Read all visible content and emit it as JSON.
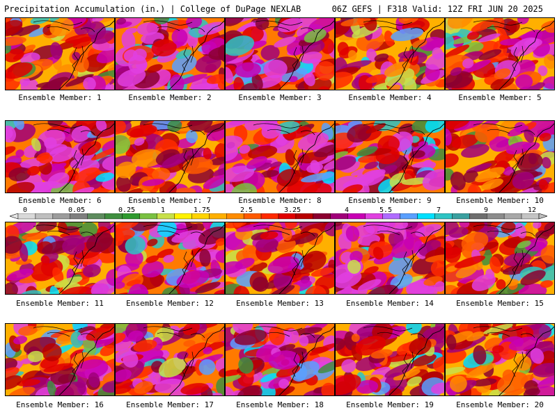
{
  "header": {
    "title_left": "Precipitation Accumulation (in.) | College of DuPage NEXLAB",
    "title_right": "06Z GEFS | F318 Valid: 12Z FRI JUN 20 2025"
  },
  "members": [
    {
      "label": "Ensemble Member: 1",
      "intensity": 0.55
    },
    {
      "label": "Ensemble Member: 2",
      "intensity": 0.92
    },
    {
      "label": "Ensemble Member: 3",
      "intensity": 0.78
    },
    {
      "label": "Ensemble Member: 4",
      "intensity": 0.5
    },
    {
      "label": "Ensemble Member: 5",
      "intensity": 0.62
    },
    {
      "label": "Ensemble Member: 6",
      "intensity": 0.85
    },
    {
      "label": "Ensemble Member: 7",
      "intensity": 0.5
    },
    {
      "label": "Ensemble Member: 8",
      "intensity": 0.82
    },
    {
      "label": "Ensemble Member: 9",
      "intensity": 0.75
    },
    {
      "label": "Ensemble Member: 10",
      "intensity": 0.45
    },
    {
      "label": "Ensemble Member: 11",
      "intensity": 0.58
    },
    {
      "label": "Ensemble Member: 12",
      "intensity": 0.72
    },
    {
      "label": "Ensemble Member: 13",
      "intensity": 0.62
    },
    {
      "label": "Ensemble Member: 14",
      "intensity": 0.8
    },
    {
      "label": "Ensemble Member: 15",
      "intensity": 0.6
    },
    {
      "label": "Ensemble Member: 16",
      "intensity": 0.6
    },
    {
      "label": "Ensemble Member: 17",
      "intensity": 0.78
    },
    {
      "label": "Ensemble Member: 18",
      "intensity": 0.85
    },
    {
      "label": "Ensemble Member: 19",
      "intensity": 0.6
    },
    {
      "label": "Ensemble Member: 20",
      "intensity": 0.55
    }
  ],
  "colorbar": {
    "tick_labels": [
      "0",
      "0.05",
      "0.25",
      "1",
      "1.75",
      "2.5",
      "3.25",
      "4",
      "5.5",
      "7",
      "9",
      "12"
    ],
    "colors": [
      "#d9d9d9",
      "#bfbfbf",
      "#9c9c9c",
      "#7f7f7f",
      "#5e8c5e",
      "#3f8f3f",
      "#2e9a2e",
      "#7ac142",
      "#c8e04a",
      "#fff200",
      "#ffd400",
      "#ffb000",
      "#ff8c00",
      "#ff5a00",
      "#ff2a00",
      "#e00000",
      "#b80000",
      "#8b0030",
      "#a0007a",
      "#c800b4",
      "#e040e0",
      "#b06cff",
      "#5aa0ff",
      "#00e0ff",
      "#2ec4c4",
      "#3aa0a0",
      "#6e6e6e",
      "#8c8c8c",
      "#a8a8a8",
      "#c4c4c4"
    ]
  }
}
